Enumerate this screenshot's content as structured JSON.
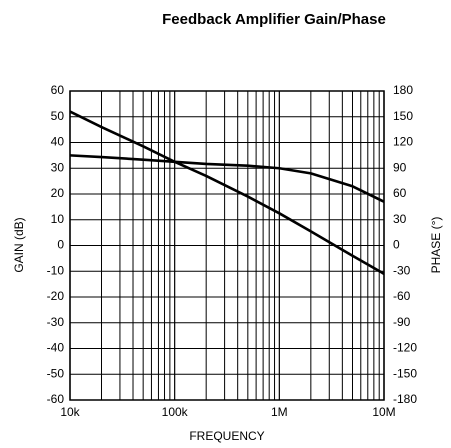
{
  "chart_data": {
    "type": "line",
    "title": "Feedback Amplifier Gain/Phase",
    "xlabel": "FREQUENCY",
    "ylabel": "GAIN (dB)",
    "y2label": "PHASE (°)",
    "xscale": "log",
    "grid": true,
    "xlim": [
      10000,
      10000000
    ],
    "xticks": [
      {
        "value": 10000,
        "label": "10k"
      },
      {
        "value": 100000,
        "label": "100k"
      },
      {
        "value": 1000000,
        "label": "1M"
      },
      {
        "value": 10000000,
        "label": "10M"
      }
    ],
    "xminor": [
      20000,
      30000,
      40000,
      50000,
      60000,
      70000,
      80000,
      90000,
      200000,
      300000,
      400000,
      500000,
      600000,
      700000,
      800000,
      900000,
      2000000,
      3000000,
      4000000,
      5000000,
      6000000,
      7000000,
      8000000,
      9000000
    ],
    "ylim": [
      -60,
      60
    ],
    "yticks": [
      -60,
      -50,
      -40,
      -30,
      -20,
      -10,
      0,
      10,
      20,
      30,
      40,
      50,
      60
    ],
    "y2lim": [
      -180,
      180
    ],
    "y2ticks": [
      -180,
      -150,
      -120,
      -90,
      -60,
      -30,
      0,
      30,
      60,
      90,
      120,
      150,
      180
    ],
    "x": [
      10000,
      20000,
      50000,
      100000,
      200000,
      500000,
      1000000,
      2000000,
      5000000,
      10000000
    ],
    "series": [
      {
        "color": "#000000",
        "values": [
          52,
          46,
          38.5,
          32.5,
          27,
          19,
          12.5,
          5.5,
          -4,
          -11
        ]
      },
      {
        "color": "#000000",
        "axis": "y2",
        "values": [
          105,
          103,
          100,
          97.5,
          95,
          93,
          90,
          84,
          69,
          51
        ]
      }
    ]
  }
}
